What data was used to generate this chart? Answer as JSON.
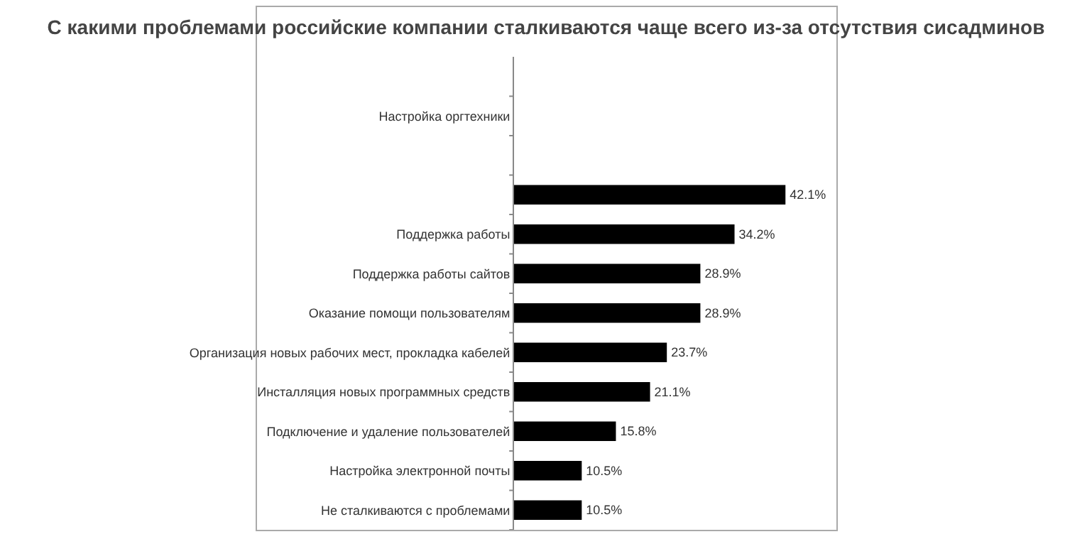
{
  "chart_data": {
    "type": "bar",
    "orientation": "horizontal",
    "title": "С какими проблемами российские компании сталкиваются чаще всего из-за отсутствия сисадминов",
    "categories": [
      "Настройка оргтехники",
      null,
      null,
      "Поддержка работы",
      "Поддержка работы сайтов",
      "Оказание помощи пользователям",
      "Организация новых рабочих мест, прокладка кабелей",
      "Инсталляция новых программных средств",
      "Подключение и удаление пользователей",
      "Настройка электронной почты",
      "Не сталкиваются с проблемами"
    ],
    "values": [
      null,
      null,
      42.1,
      34.2,
      28.9,
      28.9,
      23.7,
      21.1,
      15.8,
      10.5,
      10.5
    ],
    "value_labels": [
      null,
      null,
      "42.1%",
      "34.2%",
      "28.9%",
      "28.9%",
      "23.7%",
      "21.1%",
      "15.8%",
      "10.5%",
      "10.5%"
    ],
    "color": "#000000"
  }
}
